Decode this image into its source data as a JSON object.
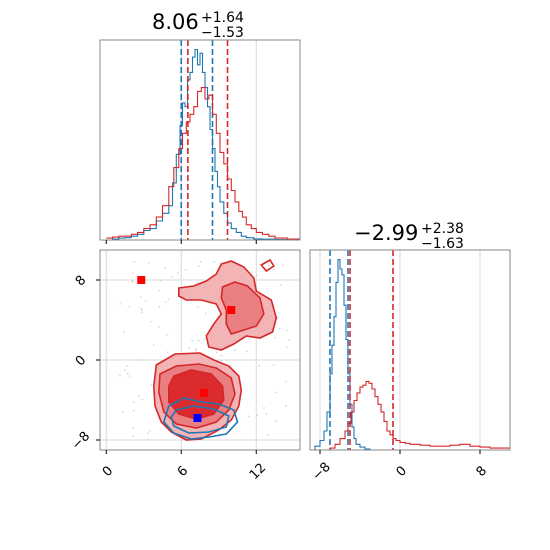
{
  "colors": {
    "blue": "#1f77b4",
    "red": "#d62728",
    "red_light": "#f3b4b6",
    "red_mid": "#ea7f82",
    "red_dark": "#dc2b2e",
    "grid": "#d9d9d9",
    "pink_dots": "#f5a0b8",
    "blue_marker": "#0000ff",
    "red_marker": "#ff0000"
  },
  "chart_data": [
    {
      "panel": "top-left",
      "type": "step-histogram",
      "title_main": "8.06",
      "title_plus": "+1.64",
      "title_minus": "−1.53",
      "xlim": [
        -0.5,
        15.5
      ],
      "series": [
        {
          "color": "blue",
          "quantiles": [
            6.0,
            8.5
          ],
          "x": [
            0.0,
            0.5,
            1.0,
            1.5,
            2.0,
            2.5,
            3.0,
            3.5,
            4.0,
            4.5,
            5.0,
            5.3,
            5.6,
            5.9,
            6.1,
            6.3,
            6.5,
            6.7,
            6.9,
            7.1,
            7.3,
            7.5,
            7.7,
            7.9,
            8.1,
            8.3,
            8.5,
            8.7,
            8.9,
            9.1,
            9.4,
            9.7,
            10.0,
            10.4,
            10.8,
            11.2,
            11.8,
            12.5,
            13.5,
            14.5,
            15.5
          ],
          "y": [
            0.0,
            0.005,
            0.01,
            0.012,
            0.02,
            0.03,
            0.05,
            0.06,
            0.1,
            0.14,
            0.18,
            0.3,
            0.45,
            0.6,
            0.72,
            0.7,
            0.84,
            0.88,
            0.96,
            1.0,
            0.92,
            0.98,
            0.88,
            0.8,
            0.7,
            0.58,
            0.48,
            0.36,
            0.28,
            0.2,
            0.14,
            0.09,
            0.06,
            0.04,
            0.02,
            0.012,
            0.006,
            0.004,
            0.002,
            0.0,
            0.0
          ]
        },
        {
          "color": "red",
          "quantiles": [
            6.53,
            9.7
          ],
          "x": [
            0.0,
            0.5,
            1.0,
            1.5,
            2.0,
            2.5,
            3.0,
            3.5,
            4.0,
            4.5,
            5.0,
            5.4,
            5.8,
            6.1,
            6.4,
            6.7,
            7.0,
            7.3,
            7.6,
            7.9,
            8.2,
            8.5,
            8.8,
            9.1,
            9.4,
            9.7,
            10.0,
            10.3,
            10.6,
            10.9,
            11.2,
            11.6,
            12.0,
            12.5,
            13.0,
            13.5,
            14.0,
            14.5,
            15.5
          ],
          "y": [
            0.01,
            0.015,
            0.02,
            0.02,
            0.03,
            0.04,
            0.06,
            0.08,
            0.12,
            0.18,
            0.28,
            0.38,
            0.48,
            0.56,
            0.62,
            0.66,
            0.7,
            0.78,
            0.8,
            0.74,
            0.76,
            0.66,
            0.56,
            0.46,
            0.4,
            0.32,
            0.26,
            0.2,
            0.15,
            0.12,
            0.08,
            0.06,
            0.04,
            0.03,
            0.02,
            0.01,
            0.01,
            0.005,
            0.0
          ]
        }
      ]
    },
    {
      "panel": "bottom-left",
      "type": "contour",
      "xlim": [
        -0.5,
        15.5
      ],
      "ylim": [
        -9.0,
        11.0
      ],
      "x_ticks": [
        "0",
        "6",
        "12"
      ],
      "x_tick_values": [
        0,
        6,
        12
      ],
      "y_ticks": [
        "8",
        "0",
        "−8"
      ],
      "y_tick_values": [
        8,
        0,
        -8
      ],
      "red_markers": [
        [
          2.8,
          8.0
        ],
        [
          10.0,
          5.0
        ],
        [
          7.8,
          -3.3
        ]
      ],
      "blue_markers": [
        [
          7.3,
          -5.8
        ]
      ]
    },
    {
      "panel": "bottom-right",
      "type": "step-histogram",
      "title_main": "−2.99",
      "title_plus": "+2.38",
      "title_minus": "−1.63",
      "xlim": [
        -9.0,
        11.0
      ],
      "x_ticks": [
        "−8",
        "0",
        "8"
      ],
      "x_tick_values": [
        -8,
        0,
        8
      ],
      "series": [
        {
          "color": "blue",
          "quantiles": [
            -7.0,
            -5.2
          ],
          "x": [
            -9.0,
            -8.5,
            -8.0,
            -7.6,
            -7.3,
            -7.0,
            -6.8,
            -6.6,
            -6.4,
            -6.2,
            -6.0,
            -5.8,
            -5.6,
            -5.4,
            -5.2,
            -5.0,
            -4.8,
            -4.6,
            -4.4,
            -4.0,
            -3.5,
            -3.0,
            0.0,
            11.0
          ],
          "y": [
            0.0,
            0.02,
            0.05,
            0.1,
            0.2,
            0.4,
            0.55,
            0.7,
            0.88,
            1.0,
            0.95,
            0.92,
            0.76,
            0.58,
            0.4,
            0.24,
            0.12,
            0.06,
            0.03,
            0.015,
            0.005,
            0.0,
            0.0,
            0.0
          ]
        },
        {
          "color": "red",
          "quantiles": [
            -5.0,
            -0.7
          ],
          "x": [
            -9.0,
            -7.0,
            -6.5,
            -6.0,
            -5.5,
            -5.2,
            -4.9,
            -4.6,
            -4.3,
            -4.0,
            -3.7,
            -3.4,
            -3.1,
            -2.8,
            -2.5,
            -2.2,
            -1.9,
            -1.6,
            -1.3,
            -1.0,
            -0.7,
            -0.4,
            0.0,
            0.5,
            1.0,
            2.0,
            3.0,
            4.0,
            5.0,
            6.0,
            7.0,
            8.0,
            9.0,
            10.0,
            11.0
          ],
          "y": [
            0.0,
            0.01,
            0.03,
            0.06,
            0.1,
            0.14,
            0.2,
            0.26,
            0.3,
            0.33,
            0.34,
            0.36,
            0.35,
            0.32,
            0.28,
            0.24,
            0.2,
            0.15,
            0.1,
            0.08,
            0.06,
            0.05,
            0.04,
            0.035,
            0.03,
            0.025,
            0.02,
            0.02,
            0.025,
            0.03,
            0.02,
            0.015,
            0.01,
            0.01,
            0.0
          ]
        }
      ]
    }
  ]
}
